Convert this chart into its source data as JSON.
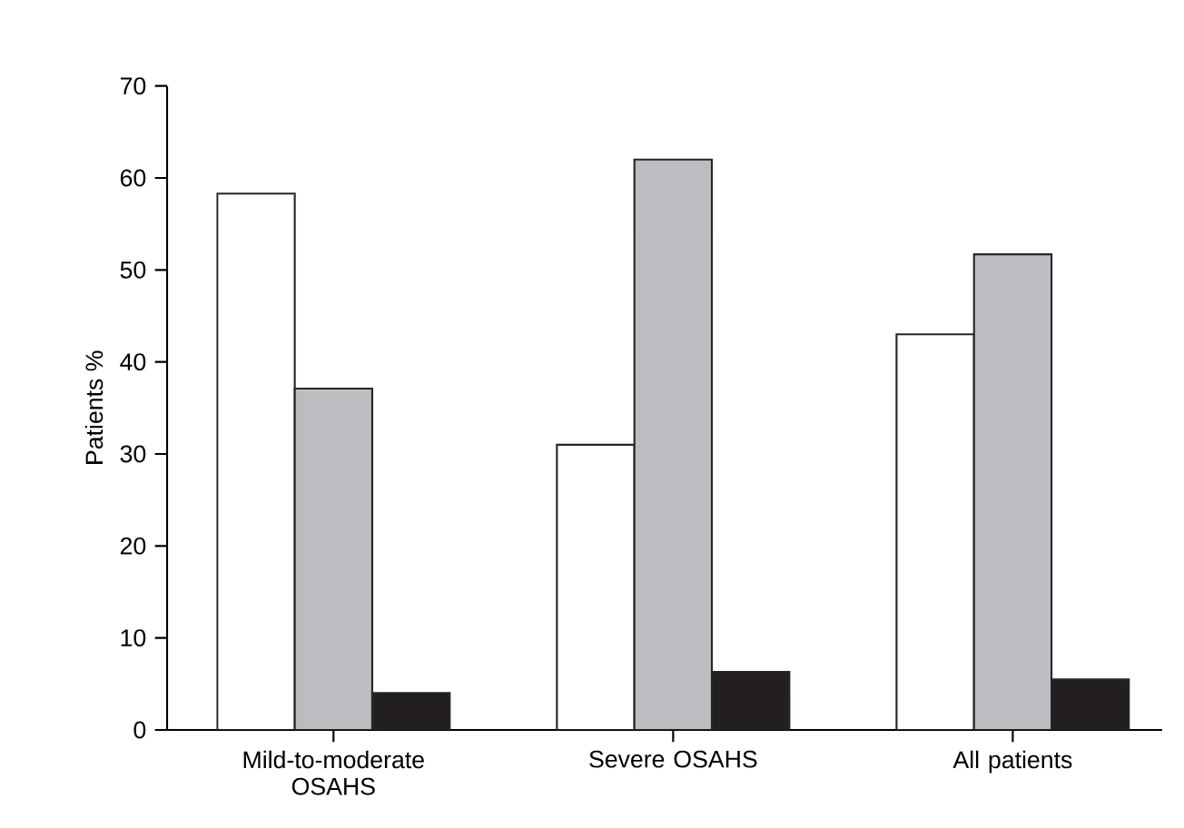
{
  "chart_data": {
    "type": "bar",
    "ylabel": "Patients %",
    "categories": [
      "Mild-to-moderate OSAHS",
      "Severe OSAHS",
      "All patients"
    ],
    "series": [
      {
        "color": "#ffffff",
        "values": [
          58.3,
          31.0,
          43.0
        ]
      },
      {
        "color": "#bcbdc0",
        "values": [
          37.1,
          62.0,
          51.7
        ]
      },
      {
        "color": "#231f20",
        "values": [
          4.0,
          6.3,
          5.5
        ]
      }
    ],
    "ylim": [
      0,
      70
    ],
    "yticks": [
      0,
      10,
      20,
      30,
      40,
      50,
      60,
      70
    ]
  }
}
